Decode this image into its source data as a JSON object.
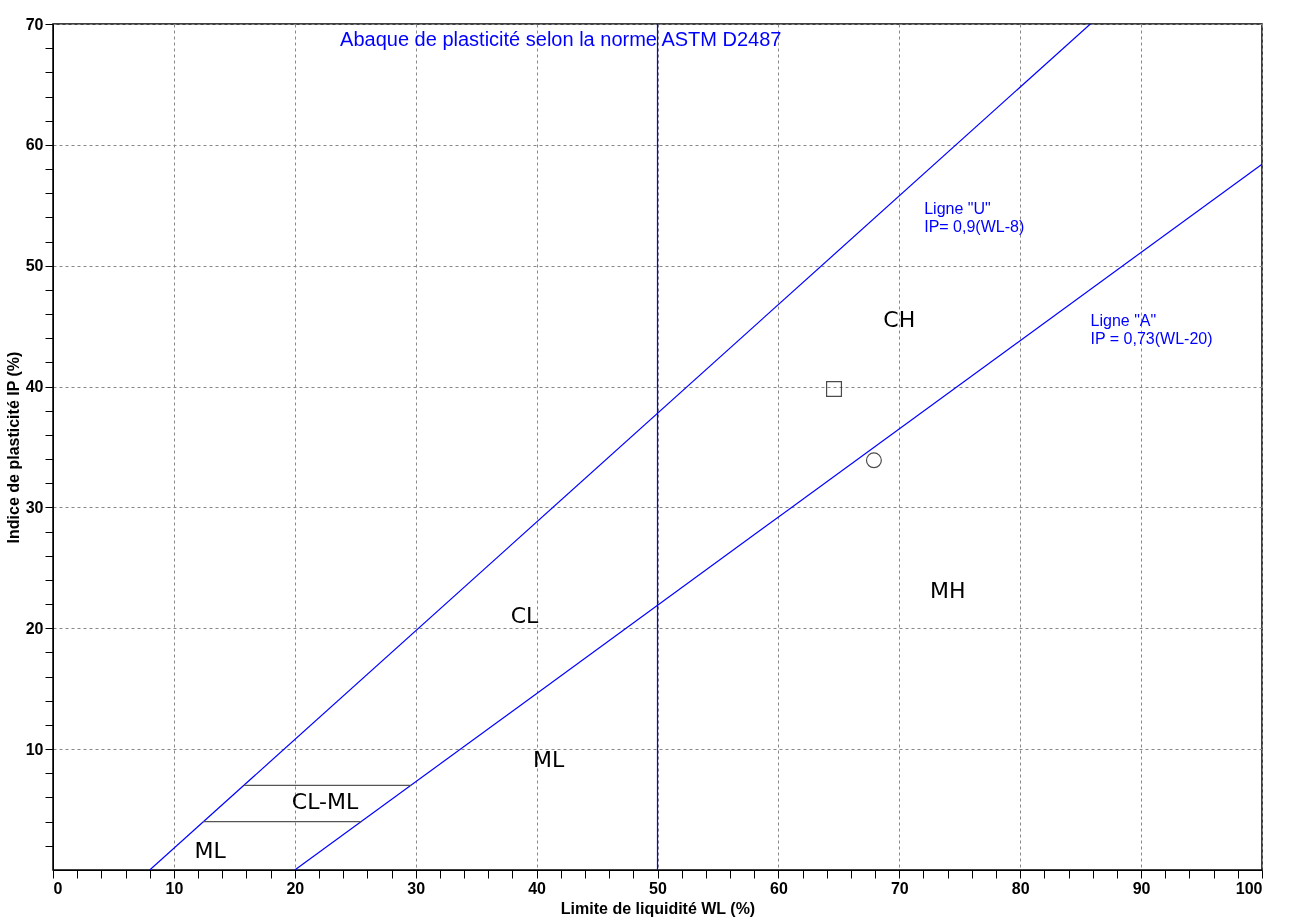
{
  "chart_data": {
    "type": "line",
    "title": "Abaque de plasticité selon la norme ASTM D2487",
    "xlabel": "Limite de liquidité  WL (%)",
    "ylabel": "Indice de plasticité  IP (%)",
    "xlim": [
      0,
      100
    ],
    "ylim": [
      0,
      70
    ],
    "xticks": [
      0,
      {
        "value": 2,
        "label": null
      },
      {
        "value": 4,
        "label": null
      },
      {
        "value": 6,
        "label": null
      },
      {
        "value": 8,
        "label": null
      },
      10,
      {
        "value": 12,
        "label": null
      },
      {
        "value": 14,
        "label": null
      },
      {
        "value": 16,
        "label": null
      },
      {
        "value": 18,
        "label": null
      },
      20,
      {
        "value": 22,
        "label": null
      },
      {
        "value": 24,
        "label": null
      },
      {
        "value": 26,
        "label": null
      },
      {
        "value": 28,
        "label": null
      },
      30,
      {
        "value": 32,
        "label": null
      },
      {
        "value": 34,
        "label": null
      },
      {
        "value": 36,
        "label": null
      },
      {
        "value": 38,
        "label": null
      },
      40,
      {
        "value": 42,
        "label": null
      },
      {
        "value": 44,
        "label": null
      },
      {
        "value": 46,
        "label": null
      },
      {
        "value": 48,
        "label": null
      },
      50,
      {
        "value": 52,
        "label": null
      },
      {
        "value": 54,
        "label": null
      },
      {
        "value": 56,
        "label": null
      },
      {
        "value": 58,
        "label": null
      },
      60,
      {
        "value": 62,
        "label": null
      },
      {
        "value": 64,
        "label": null
      },
      {
        "value": 66,
        "label": null
      },
      {
        "value": 68,
        "label": null
      },
      70,
      {
        "value": 72,
        "label": null
      },
      {
        "value": 74,
        "label": null
      },
      {
        "value": 76,
        "label": null
      },
      {
        "value": 78,
        "label": null
      },
      80,
      {
        "value": 82,
        "label": null
      },
      {
        "value": 84,
        "label": null
      },
      {
        "value": 86,
        "label": null
      },
      {
        "value": 88,
        "label": null
      },
      90,
      {
        "value": 92,
        "label": null
      },
      {
        "value": 94,
        "label": null
      },
      {
        "value": 96,
        "label": null
      },
      {
        "value": 98,
        "label": null
      },
      100
    ],
    "yticks": [
      {
        "value": 2,
        "label": null
      },
      {
        "value": 4,
        "label": null
      },
      {
        "value": 6,
        "label": null
      },
      {
        "value": 8,
        "label": null
      },
      10,
      {
        "value": 12,
        "label": null
      },
      {
        "value": 14,
        "label": null
      },
      {
        "value": 16,
        "label": null
      },
      {
        "value": 18,
        "label": null
      },
      20,
      {
        "value": 22,
        "label": null
      },
      {
        "value": 24,
        "label": null
      },
      {
        "value": 26,
        "label": null
      },
      {
        "value": 28,
        "label": null
      },
      30,
      {
        "value": 32,
        "label": null
      },
      {
        "value": 34,
        "label": null
      },
      {
        "value": 36,
        "label": null
      },
      {
        "value": 38,
        "label": null
      },
      40,
      {
        "value": 42,
        "label": null
      },
      {
        "value": 44,
        "label": null
      },
      {
        "value": 46,
        "label": null
      },
      {
        "value": 48,
        "label": null
      },
      50,
      {
        "value": 52,
        "label": null
      },
      {
        "value": 54,
        "label": null
      },
      {
        "value": 56,
        "label": null
      },
      {
        "value": 58,
        "label": null
      },
      60,
      {
        "value": 62,
        "label": null
      },
      {
        "value": 64,
        "label": null
      },
      {
        "value": 66,
        "label": null
      },
      {
        "value": 68,
        "label": null
      },
      70
    ],
    "grid": true,
    "series": [
      {
        "name": "Ligne \"U\"\nIP= 0,9(WL-8)",
        "color": "#0000ff",
        "x": [
          8,
          85.8
        ],
        "values": [
          0,
          70
        ]
      },
      {
        "name": "Ligne \"A\"\nIP = 0,73(WL-20)",
        "color": "#0000ff",
        "x": [
          20,
          100
        ],
        "values": [
          0,
          58.4
        ]
      },
      {
        "color": "#555555",
        "x": [
          15.8,
          29.6
        ],
        "values": [
          7,
          7
        ]
      },
      {
        "color": "#555555",
        "x": [
          12.4,
          25.5
        ],
        "values": [
          4,
          4
        ]
      },
      {
        "type": "scatter",
        "marker": "square",
        "color": "#000000",
        "x": [
          64.6
        ],
        "values": [
          39.8
        ]
      },
      {
        "type": "scatter",
        "marker": "circle",
        "color": "#000000",
        "x": [
          67.9
        ],
        "values": [
          33.9
        ]
      }
    ],
    "ref_lines": [
      {
        "axis": "x",
        "value": 50,
        "color": "#0000ff"
      }
    ],
    "annotations": [
      "CH",
      "CL",
      "MH",
      "ML",
      "CL-ML",
      "ML"
    ]
  }
}
